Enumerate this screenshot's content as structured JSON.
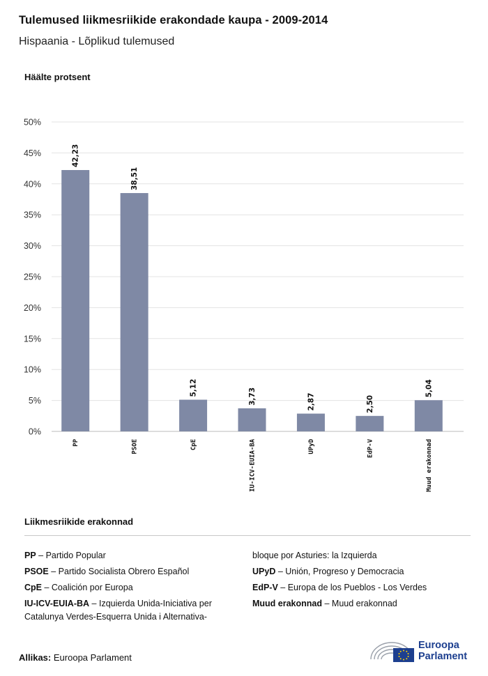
{
  "title": "Tulemused liikmesriikide erakondade kaupa - 2009-2014",
  "subtitle": "Hispaania - Lõplikud tulemused",
  "chart_data": {
    "type": "bar",
    "ylabel": "Häälte protsent",
    "categories": [
      "PP",
      "PSOE",
      "CpE",
      "IU-ICV-EUIA-BA",
      "UPyD",
      "EdP-V",
      "Muud erakonnad"
    ],
    "values": [
      42.23,
      38.51,
      5.12,
      3.73,
      2.87,
      2.5,
      5.04
    ],
    "value_labels": [
      "42,23",
      "38,51",
      "5,12",
      "3,73",
      "2,87",
      "2,50",
      "5,04"
    ],
    "ylim": [
      0,
      50
    ],
    "yticks": [
      "0%",
      "5%",
      "10%",
      "15%",
      "20%",
      "25%",
      "30%",
      "35%",
      "40%",
      "45%",
      "50%"
    ],
    "grid": true,
    "bar_color": "#7f89a5"
  },
  "legend": {
    "title": "Liikmesriikide erakonnad",
    "items": [
      {
        "abbr": "PP",
        "name": "Partido Popular"
      },
      {
        "abbr": "PSOE",
        "name": "Partido Socialista Obrero Español"
      },
      {
        "abbr": "CpE",
        "name": "Coalición por Europa"
      },
      {
        "abbr": "IU-ICV-EUIA-BA",
        "name": "Izquierda Unida-Iniciativa per",
        "line2": "Catalunya Verdes-Esquerra Unida i Alternativa-",
        "line3": "bloque por Asturies: la Izquierda"
      },
      {
        "abbr": "UPyD",
        "name": "Unión, Progreso y Democracia"
      },
      {
        "abbr": "EdP-V",
        "name": "Europa de los Pueblos - Los Verdes"
      },
      {
        "abbr": "Muud erakonnad",
        "name": "Muud erakonnad"
      }
    ]
  },
  "source": {
    "label": "Allikas:",
    "value": "Euroopa Parlament"
  },
  "logo": {
    "line1": "Euroopa",
    "line2": "Parlament"
  }
}
